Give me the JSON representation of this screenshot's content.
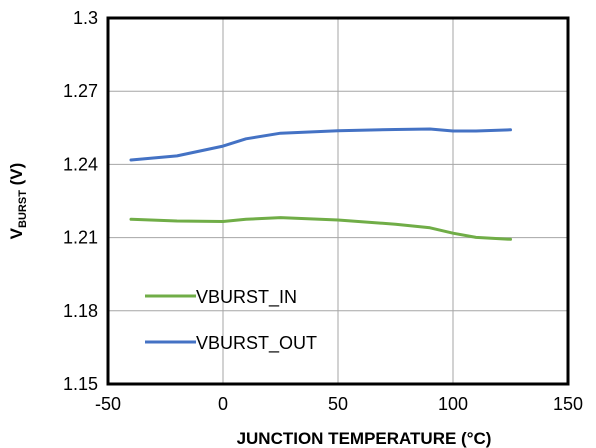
{
  "chart_data": {
    "type": "line",
    "xlabel": "JUNCTION TEMPERATURE (°C)",
    "ylabel_main": "V",
    "ylabel_sub": "BURST",
    "ylabel_unit": " (V)",
    "xlim": [
      -50,
      150
    ],
    "ylim": [
      1.15,
      1.3
    ],
    "x_ticks": [
      "-50",
      "0",
      "50",
      "100",
      "150"
    ],
    "y_ticks": [
      "1.15",
      "1.18",
      "1.21",
      "1.24",
      "1.27",
      "1.3"
    ],
    "grid": true,
    "legend_position": "bottom-left",
    "series": [
      {
        "name": "VBURST_IN",
        "color": "#70AD47",
        "x": [
          -40,
          -20,
          0,
          10,
          25,
          50,
          75,
          90,
          100,
          110,
          125
        ],
        "y": [
          1.2175,
          1.2168,
          1.2166,
          1.2175,
          1.2182,
          1.2172,
          1.2155,
          1.214,
          1.2118,
          1.2101,
          1.2093
        ]
      },
      {
        "name": "VBURST_OUT",
        "color": "#4472C4",
        "x": [
          -40,
          -20,
          0,
          10,
          25,
          50,
          75,
          90,
          100,
          110,
          125
        ],
        "y": [
          1.2418,
          1.2435,
          1.2475,
          1.2505,
          1.2528,
          1.2538,
          1.2543,
          1.2545,
          1.2537,
          1.2537,
          1.2542
        ]
      }
    ]
  }
}
